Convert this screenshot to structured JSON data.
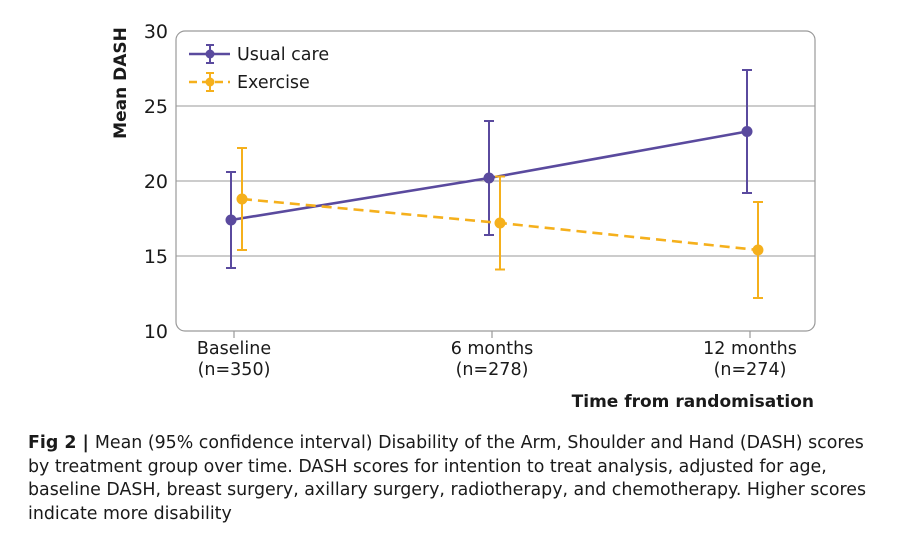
{
  "chart_data": {
    "type": "line",
    "categories": [
      "Baseline\n(n=350)",
      "6 months\n(n=278)",
      "12 months\n(n=274)"
    ],
    "x_tick_labels": [
      [
        "Baseline",
        "(n=350)"
      ],
      [
        "6 months",
        "(n=278)"
      ],
      [
        "12 months",
        "(n=274)"
      ]
    ],
    "series": [
      {
        "name": "Usual care",
        "color": "#5a4a9e",
        "line_style": "solid",
        "values": [
          17.4,
          20.2,
          23.3
        ],
        "ci_lower": [
          14.2,
          16.4,
          19.2
        ],
        "ci_upper": [
          20.6,
          24.0,
          27.4
        ]
      },
      {
        "name": "Exercise",
        "color": "#f5b01c",
        "line_style": "dashed",
        "values": [
          18.8,
          17.2,
          15.4
        ],
        "ci_lower": [
          15.4,
          14.1,
          12.2
        ],
        "ci_upper": [
          22.2,
          20.3,
          18.6
        ]
      }
    ],
    "ylabel": "Mean DASH",
    "xlabel": "Time from randomisation",
    "ylim": [
      10,
      30
    ],
    "yticks": [
      10,
      15,
      20,
      25,
      30
    ],
    "grid": true,
    "legend_position": "top-left"
  },
  "caption": {
    "label": "Fig 2 | ",
    "text": "Mean (95% confidence interval) Disability of the Arm, Shoulder and Hand (DASH) scores by treatment group over time. DASH scores for intention to treat analysis, adjusted for age, baseline DASH, breast surgery, axillary surgery, radiotherapy, and chemotherapy. Higher scores indicate more disability"
  }
}
